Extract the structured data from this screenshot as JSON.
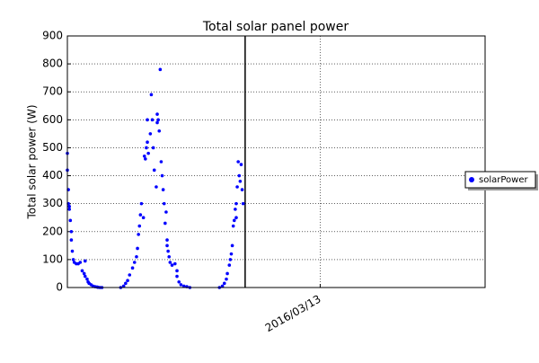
{
  "chart_data": {
    "type": "scatter",
    "title": "Total solar panel power",
    "y_label": "Total solar power (W)",
    "series": [
      {
        "name": "solarPower",
        "color": "#0000ff",
        "x": [
          -2.56,
          -2.56,
          -2.55,
          -2.55,
          -2.54,
          -2.54,
          -2.53,
          -2.52,
          -2.52,
          -2.51,
          -2.5,
          -2.49,
          -2.47,
          -2.45,
          -2.43,
          -2.41,
          -2.39,
          -2.38,
          -2.38,
          -2.36,
          -2.35,
          -2.34,
          -2.32,
          -2.3,
          -2.28,
          -2.26,
          -2.25,
          -2.23,
          -2.21,
          -2.02,
          -1.99,
          -1.97,
          -1.95,
          -1.93,
          -1.9,
          -1.88,
          -1.86,
          -1.85,
          -1.84,
          -1.83,
          -1.82,
          -1.81,
          -1.79,
          -1.78,
          -1.77,
          -1.76,
          -1.75,
          -1.75,
          -1.74,
          -1.72,
          -1.71,
          -1.7,
          -1.69,
          -1.68,
          -1.66,
          -1.65,
          -1.65,
          -1.64,
          -1.63,
          -1.62,
          -1.61,
          -1.6,
          -1.59,
          -1.58,
          -1.57,
          -1.56,
          -1.55,
          -1.55,
          -1.54,
          -1.53,
          -1.52,
          -1.5,
          -1.47,
          -1.45,
          -1.45,
          -1.43,
          -1.41,
          -1.38,
          -1.35,
          -1.32,
          -1.02,
          -0.99,
          -0.97,
          -0.95,
          -0.94,
          -0.92,
          -0.91,
          -0.9,
          -0.89,
          -0.88,
          -0.87,
          -0.86,
          -0.85,
          -0.85,
          -0.84,
          -0.83,
          -0.82,
          -0.81,
          -0.8,
          -0.79,
          -0.78
        ],
        "values": [
          480,
          420,
          350,
          300,
          290,
          280,
          240,
          200,
          170,
          130,
          100,
          90,
          85,
          85,
          90,
          60,
          50,
          95,
          40,
          30,
          20,
          15,
          10,
          5,
          3,
          2,
          1,
          0,
          0,
          0,
          5,
          15,
          25,
          45,
          70,
          90,
          110,
          140,
          190,
          220,
          260,
          300,
          250,
          470,
          460,
          500,
          600,
          520,
          480,
          550,
          690,
          600,
          500,
          420,
          360,
          590,
          620,
          600,
          560,
          780,
          450,
          400,
          350,
          300,
          230,
          270,
          170,
          150,
          130,
          110,
          90,
          80,
          85,
          60,
          40,
          20,
          10,
          5,
          3,
          0,
          0,
          5,
          15,
          30,
          50,
          80,
          100,
          120,
          150,
          220,
          240,
          280,
          250,
          300,
          360,
          450,
          400,
          380,
          440,
          350,
          300
        ]
      }
    ],
    "xlim": [
      -2.56,
      1.67
    ],
    "xticks": [
      {
        "value": 0,
        "label": "2016/03/13"
      }
    ],
    "ylim": [
      0,
      900
    ],
    "yticks": [
      0,
      100,
      200,
      300,
      400,
      500,
      600,
      700,
      800,
      900
    ],
    "vline": -0.76,
    "grid": true,
    "legend": "right"
  }
}
